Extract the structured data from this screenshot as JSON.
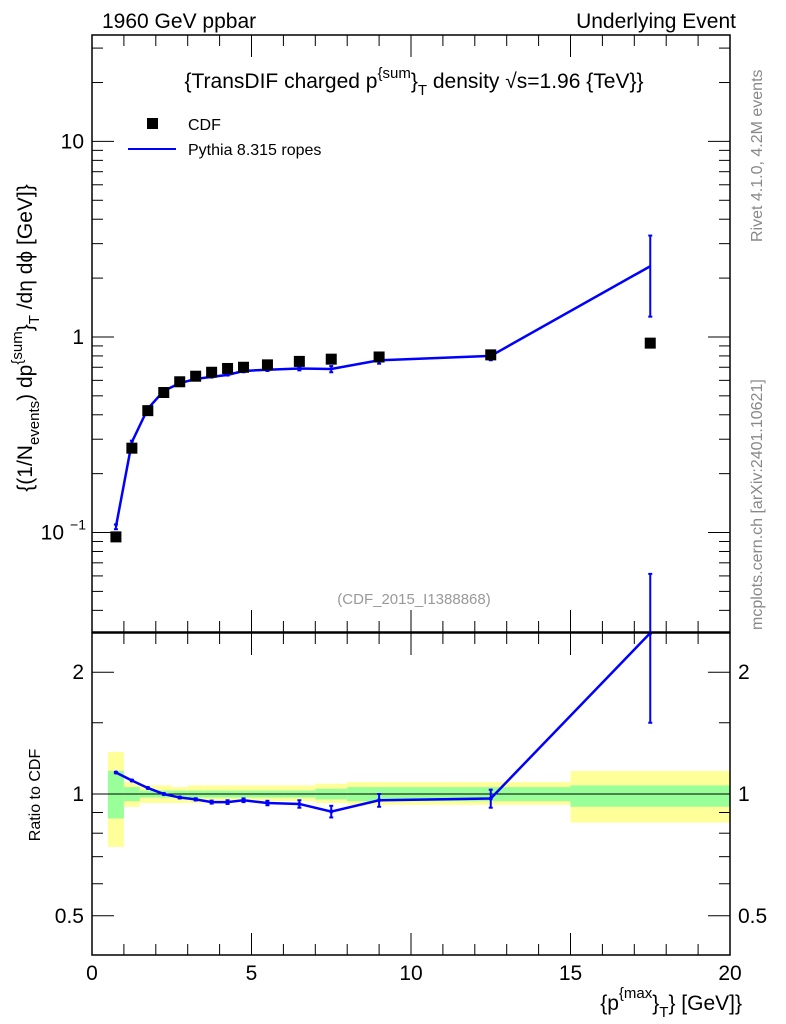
{
  "header": {
    "left": "1960 GeV ppbar",
    "right": "Underlying Event"
  },
  "side": {
    "rivet": "Rivet 4.1.0,  4.2M events",
    "mcplots": "mcplots.cern.ch [arXiv:2401.10621]"
  },
  "chart_data": [
    {
      "type": "scatter",
      "title": "{TransDIF charged p^{sum}_T density √s=1.96 {TeV}}",
      "title_parts": {
        "a": "{TransDIF charged p",
        "sup": "{sum",
        "b": "}",
        "sub": "T",
        "c": " density ",
        "sqrt": "√s=1.96 {TeV}}"
      },
      "ylabel_parts": {
        "a": "{(1/N",
        "sub1": "events",
        "b": ") dp",
        "sup": "{sum",
        "c": "}",
        "sub2": "T",
        "d": " /dη  dϕ [GeV]}"
      },
      "analysis": "(CDF_2015_I1388868)",
      "xlim": [
        0,
        20
      ],
      "ylim": [
        0.031,
        35
      ],
      "yscale": "log",
      "yticks": [
        {
          "v": 10,
          "label": "10"
        },
        {
          "v": 1,
          "label": "1"
        },
        {
          "v": 0.1,
          "label": "10",
          "exp": "−1"
        }
      ],
      "x": [
        0.75,
        1.25,
        1.75,
        2.25,
        2.75,
        3.25,
        3.75,
        4.25,
        4.75,
        5.5,
        6.5,
        7.5,
        9,
        12.5,
        17.5
      ],
      "series": [
        {
          "name": "CDF",
          "color": "#000000",
          "values": [
            0.095,
            0.27,
            0.42,
            0.52,
            0.59,
            0.63,
            0.66,
            0.69,
            0.7,
            0.72,
            0.75,
            0.77,
            0.79,
            0.81,
            0.93
          ]
        },
        {
          "name": "Pythia 8.315 ropes",
          "color": "#0000ff",
          "values": [
            0.107,
            0.29,
            0.43,
            0.53,
            0.58,
            0.61,
            0.625,
            0.64,
            0.67,
            0.68,
            0.69,
            0.686,
            0.76,
            0.8,
            2.3
          ],
          "err_low": [
            0.104,
            0.285,
            0.425,
            0.525,
            0.575,
            0.605,
            0.62,
            0.635,
            0.66,
            0.67,
            0.675,
            0.66,
            0.73,
            0.76,
            1.27
          ],
          "err_high": [
            0.11,
            0.295,
            0.435,
            0.535,
            0.585,
            0.615,
            0.63,
            0.645,
            0.68,
            0.69,
            0.705,
            0.71,
            0.79,
            0.84,
            3.3
          ]
        }
      ],
      "legend": "top-left"
    },
    {
      "type": "line",
      "ylabel": "Ratio to CDF",
      "xlabel_parts": {
        "a": "{p",
        "sup": "{max",
        "b": "}",
        "sub": "T",
        "c": "} [GeV]}"
      },
      "xlim": [
        0,
        20
      ],
      "ylim": [
        0.4,
        2.5
      ],
      "yscale": "log",
      "xticks": [
        "0",
        "5",
        "10",
        "15",
        "20"
      ],
      "yticks": [
        {
          "v": 2,
          "label": "2"
        },
        {
          "v": 1,
          "label": "1"
        },
        {
          "v": 0.5,
          "label": "0.5"
        }
      ],
      "bin_edges": [
        0.5,
        1,
        1.5,
        2,
        2.5,
        3,
        3.5,
        4,
        4.5,
        5,
        6,
        7,
        8,
        10,
        15,
        20
      ],
      "band_total": {
        "color": "#ffff99",
        "low": [
          0.74,
          0.93,
          0.95,
          0.95,
          0.95,
          0.95,
          0.96,
          0.96,
          0.96,
          0.96,
          0.96,
          0.95,
          0.94,
          0.94,
          0.85
        ],
        "high": [
          1.27,
          1.07,
          1.05,
          1.05,
          1.04,
          1.05,
          1.05,
          1.05,
          1.05,
          1.05,
          1.05,
          1.06,
          1.07,
          1.07,
          1.14
        ]
      },
      "band_stat": {
        "color": "#99ff99",
        "low": [
          0.87,
          0.96,
          0.98,
          0.98,
          0.98,
          0.98,
          0.98,
          0.98,
          0.98,
          0.98,
          0.98,
          0.97,
          0.96,
          0.96,
          0.93
        ],
        "high": [
          1.14,
          1.04,
          1.02,
          1.02,
          1.02,
          1.02,
          1.02,
          1.02,
          1.02,
          1.02,
          1.02,
          1.03,
          1.04,
          1.04,
          1.05
        ]
      },
      "x": [
        0.75,
        1.25,
        1.75,
        2.25,
        2.75,
        3.25,
        3.75,
        4.25,
        4.75,
        5.5,
        6.5,
        7.5,
        9,
        12.5,
        17.5
      ],
      "ratio": {
        "name": "Pythia 8.315 ropes / CDF",
        "color": "#0000ff",
        "values": [
          1.13,
          1.08,
          1.035,
          1.0,
          0.98,
          0.97,
          0.955,
          0.955,
          0.965,
          0.95,
          0.945,
          0.905,
          0.965,
          0.975,
          2.5
        ],
        "err": [
          0.004,
          0.004,
          0.004,
          0.004,
          0.005,
          0.006,
          0.008,
          0.01,
          0.01,
          0.012,
          0.02,
          0.03,
          0.035,
          0.05,
          1.0
        ]
      }
    }
  ]
}
